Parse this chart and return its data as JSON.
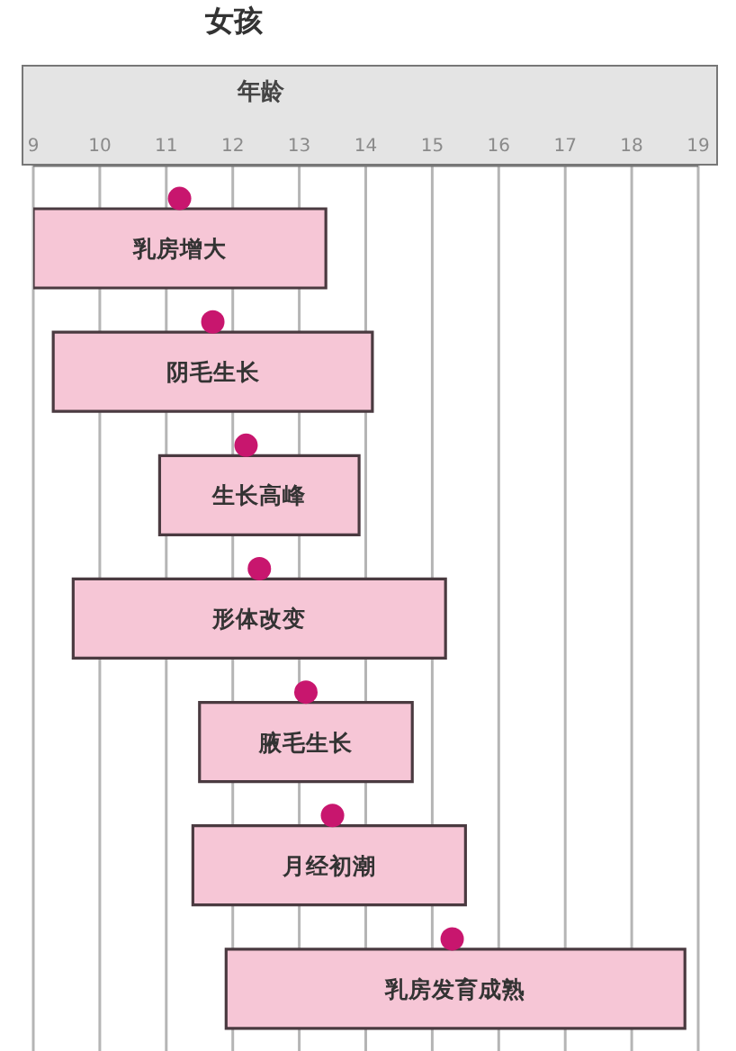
{
  "chart_data": {
    "type": "bar",
    "title": "女孩",
    "xlabel": "年龄",
    "orientation": "horizontal",
    "categories": [
      "乳房增大",
      "阴毛生长",
      "生长高峰",
      "形体改变",
      "腋毛生长",
      "月经初潮",
      "乳房发育成熟"
    ],
    "series": [
      {
        "type": "bar",
        "color": "#f6c6d6",
        "base": [
          9.0,
          9.3,
          10.9,
          9.6,
          11.5,
          11.4,
          11.9
        ],
        "values": [
          4.4,
          4.8,
          3.0,
          5.6,
          3.2,
          4.1,
          6.9
        ]
      },
      {
        "type": "scatter",
        "color": "#c8166e",
        "marker": "circle",
        "values": [
          11.2,
          11.7,
          12.2,
          12.4,
          13.1,
          13.5,
          15.3
        ]
      }
    ],
    "xlim": [
      9,
      19
    ],
    "xticks": [
      9,
      10,
      11,
      12,
      13,
      14,
      15,
      16,
      17,
      18,
      19
    ],
    "grid": "x"
  }
}
